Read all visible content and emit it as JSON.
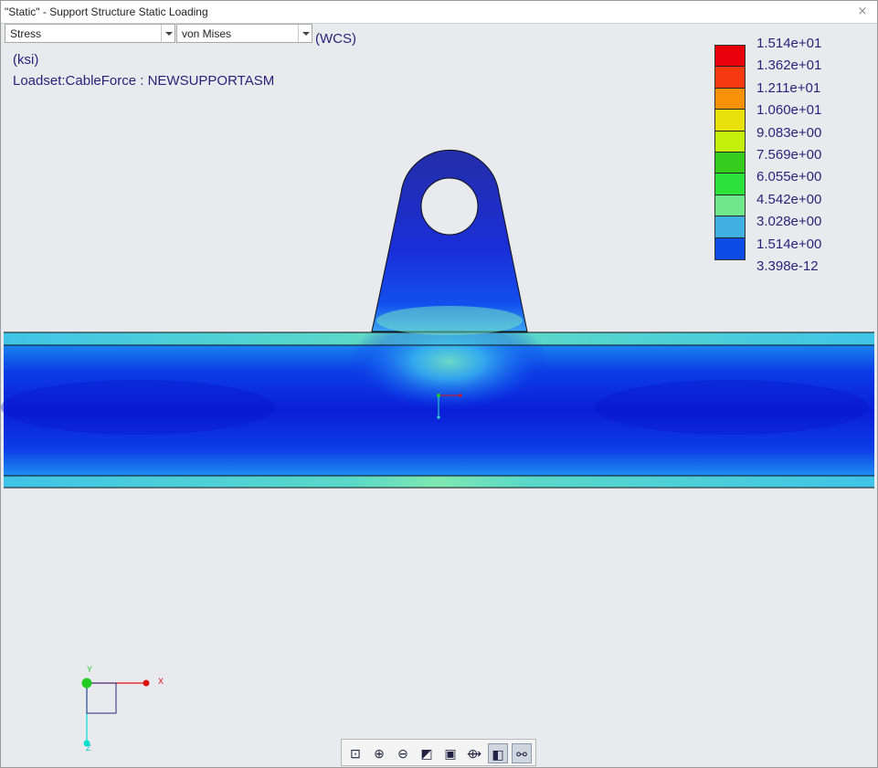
{
  "window": {
    "title": "\"Static\" - Support Structure Static Loading",
    "close_glyph": "⨯"
  },
  "controls": {
    "quantity": "Stress",
    "component": "von Mises",
    "coordinate_system": "(WCS)"
  },
  "info": {
    "units": "(ksi)",
    "loadset": "Loadset:CableForce :  NEWSUPPORTASM"
  },
  "legend": {
    "labels": [
      "1.514e+01",
      "1.362e+01",
      "1.211e+01",
      "1.060e+01",
      "9.083e+00",
      "7.569e+00",
      "6.055e+00",
      "4.542e+00",
      "3.028e+00",
      "1.514e+00",
      "3.398e-12"
    ],
    "colors": [
      "#e8000b",
      "#f53a10",
      "#f99209",
      "#e8e00a",
      "#c5f00d",
      "#36cc1e",
      "#2ee23c",
      "#6ee88a",
      "#3fb0e0",
      "#0f4ce6",
      "#232ea8"
    ]
  },
  "triad": {
    "x_label": "X",
    "y_label": "Y",
    "z_label": "Z",
    "x_color": "#e01010",
    "y_color": "#22cc22",
    "z_color": "#00e0d0"
  },
  "toolbar": {
    "buttons": [
      {
        "icon": "refit-icon",
        "glyph": "⊡"
      },
      {
        "icon": "zoom-in-icon",
        "glyph": "⊕"
      },
      {
        "icon": "zoom-out-icon",
        "glyph": "⊖"
      },
      {
        "icon": "repaint-icon",
        "glyph": "◩"
      },
      {
        "icon": "saved-views-icon",
        "glyph": "▣"
      },
      {
        "icon": "spin-center-icon",
        "glyph": "⟴"
      },
      {
        "icon": "display-style-icon",
        "glyph": "◧"
      },
      {
        "icon": "datum-display-icon",
        "glyph": "⚯"
      }
    ]
  }
}
